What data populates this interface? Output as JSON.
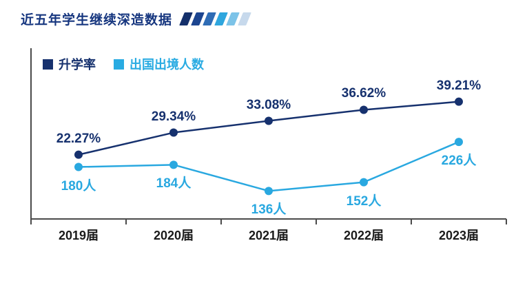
{
  "page": {
    "title": "近五年学生继续深造数据"
  },
  "title_decor_colors": [
    "#14306b",
    "#1c4590",
    "#2f6cb5",
    "#2ea6de",
    "#7cc3e8",
    "#c7d9ec"
  ],
  "legend": [
    {
      "label": "升学率",
      "color": "#16316e"
    },
    {
      "label": "出国出境人数",
      "color": "#29abe2"
    }
  ],
  "axis_color": "#4a4a4a",
  "chart_data": {
    "type": "line",
    "title": "近五年学生继续深造数据",
    "categories": [
      "2019届",
      "2020届",
      "2021届",
      "2022届",
      "2023届"
    ],
    "series": [
      {
        "name": "升学率",
        "unit": "%",
        "color": "#16316e",
        "values": [
          22.27,
          29.34,
          33.08,
          36.62,
          39.21
        ],
        "labels": [
          "22.27%",
          "29.34%",
          "33.08%",
          "36.62%",
          "39.21%"
        ],
        "label_position": "above"
      },
      {
        "name": "出国出境人数",
        "unit": "人",
        "color": "#29a8e0",
        "values": [
          180,
          184,
          136,
          152,
          226
        ],
        "labels": [
          "180人",
          "184人",
          "136人",
          "152人",
          "226人"
        ],
        "label_position": "below"
      }
    ],
    "xlabel": "",
    "ylabel": "",
    "grid": false,
    "legend_position": "top-left",
    "axis_ranges": {
      "rate_percent": [
        20,
        42
      ],
      "people_count": [
        120,
        240
      ]
    }
  }
}
